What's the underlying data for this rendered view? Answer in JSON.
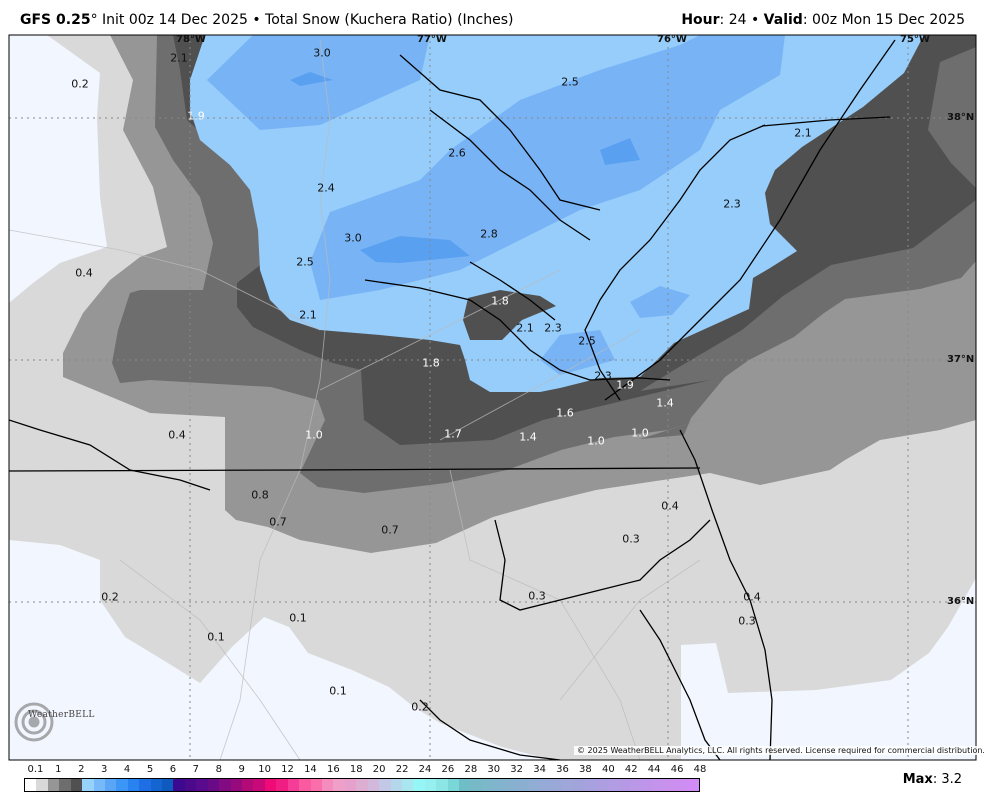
{
  "header": {
    "model": "GFS 0.25",
    "degree": "°",
    "init": " Init 00z 14 Dec 2025 • Total Snow (Kuchera Ratio) (Inches)",
    "hour_label": "Hour",
    "hour_value": ": 24 • ",
    "valid_label": "Valid",
    "valid_value": ": 00z Mon 15 Dec 2025"
  },
  "colors": {
    "background": "#f2f6fe",
    "snow_0_1": "#d9d9d9",
    "snow_0_5": "#969696",
    "snow_1": "#6e6e6e",
    "snow_1_5": "#505050",
    "snow_2": "#96cdfa",
    "snow_2_5": "#78b4f5",
    "snow_3": "#5aa0f0"
  },
  "graticule": {
    "lon": [
      "78°W",
      "77°W",
      "76°W",
      "75°W"
    ],
    "lat": [
      "38°N",
      "37°N",
      "36°N"
    ]
  },
  "map_labels": [
    "3.0",
    "2.1",
    "0.2",
    "2.5",
    "1.9",
    "2.1",
    "2.6",
    "2.4",
    "2.3",
    "3.0",
    "2.8",
    "2.5",
    "0.4",
    "1.8",
    "2.1",
    "2.1",
    "2.3",
    "2.5",
    "1.8",
    "2.3",
    "1.9",
    "1.4",
    "1.6",
    "0.4",
    "1.0",
    "1.7",
    "1.4",
    "1.0",
    "1.0",
    "0.8",
    "0.7",
    "0.7",
    "0.4",
    "0.3",
    "0.3",
    "0.4",
    "0.2",
    "0.3",
    "0.1",
    "0.1",
    "0.1",
    "0.2"
  ],
  "logo": "WeatherBELL",
  "copyright": "© 2025 WeatherBELL Analytics, LLC. All rights reserved. License required for commercial distribution.",
  "colorbar": {
    "labels": [
      "0.1",
      "1",
      "2",
      "3",
      "4",
      "5",
      "6",
      "7",
      "8",
      "9",
      "10",
      "12",
      "14",
      "16",
      "18",
      "20",
      "22",
      "24",
      "26",
      "28",
      "30",
      "32",
      "34",
      "36",
      "38",
      "40",
      "42",
      "44",
      "46",
      "48"
    ],
    "colors": [
      "#ffffff",
      "#d9d9d9",
      "#969696",
      "#6e6e6e",
      "#505050",
      "#96d2fa",
      "#78b9fa",
      "#5aa5f5",
      "#3c96f5",
      "#2882f0",
      "#1e6ee6",
      "#1464d2",
      "#0f5abe",
      "#3c0a91",
      "#4b0a8c",
      "#5a0a8c",
      "#690a87",
      "#820a82",
      "#960a7d",
      "#b40a78",
      "#c80a78",
      "#f00a78",
      "#f01e82",
      "#f53c96",
      "#fa5aa0",
      "#fa6eaa",
      "#f58cbe",
      "#f0a0c8",
      "#e6a0cd",
      "#dcafd2",
      "#d2b9dc",
      "#c3c8e6",
      "#b4d7eb",
      "#aae6f0",
      "#96f5f5",
      "#96f0f0",
      "#8ce6e6",
      "#7ad7d7",
      "#6ebec8",
      "#78b9c8",
      "#7db7ca",
      "#82b4cd",
      "#86b2cf",
      "#8bafd1",
      "#90add3",
      "#95aad6",
      "#9aa8d8",
      "#9ea6da",
      "#a3a3dc",
      "#a8a1df",
      "#ad9ee1",
      "#b29ce3",
      "#b699e5",
      "#bb97e8",
      "#c094ea",
      "#c592ec",
      "#ca90ee",
      "#cd8ef1",
      "#d28cf5"
    ]
  },
  "max": {
    "label": "Max",
    "value": ": 3.2"
  }
}
